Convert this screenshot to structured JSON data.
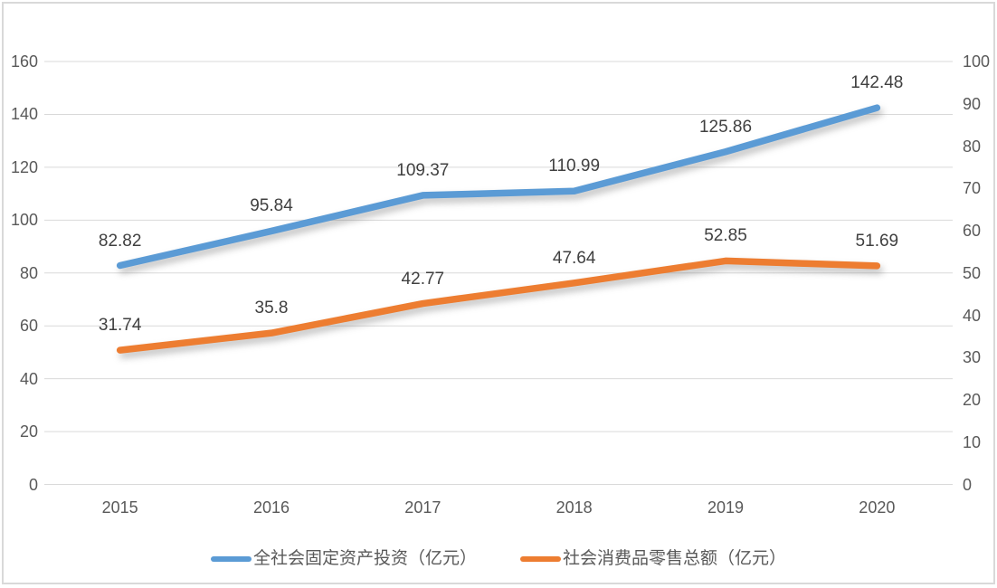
{
  "chart_data": {
    "type": "line",
    "title": "",
    "categories": [
      "2015",
      "2016",
      "2017",
      "2018",
      "2019",
      "2020"
    ],
    "series": [
      {
        "name": "全社会固定资产投资（亿元）",
        "axis": "left",
        "color": "#5B9BD5",
        "values": [
          82.82,
          95.84,
          109.37,
          110.99,
          125.86,
          142.48
        ],
        "labels": [
          "82.82",
          "95.84",
          "109.37",
          "110.99",
          "125.86",
          "142.48"
        ]
      },
      {
        "name": "社会消费品零售总额（亿元）",
        "axis": "right",
        "color": "#ED7D31",
        "values": [
          31.74,
          35.8,
          42.77,
          47.64,
          52.85,
          51.69
        ],
        "labels": [
          "31.74",
          "35.8",
          "42.77",
          "47.64",
          "52.85",
          "51.69"
        ]
      }
    ],
    "left_axis": {
      "min": 0,
      "max": 160,
      "step": 20,
      "ticks": [
        "0",
        "20",
        "40",
        "60",
        "80",
        "100",
        "120",
        "140",
        "160"
      ]
    },
    "right_axis": {
      "min": 0,
      "max": 100,
      "step": 10,
      "ticks": [
        "0",
        "10",
        "20",
        "30",
        "40",
        "50",
        "60",
        "70",
        "80",
        "90",
        "100"
      ]
    },
    "grid": true,
    "legend_position": "bottom"
  },
  "legend": {
    "items": [
      {
        "label": "全社会固定资产投资（亿元）",
        "color": "#5B9BD5"
      },
      {
        "label": "社会消费品零售总额（亿元）",
        "color": "#ED7D31"
      }
    ]
  },
  "colors": {
    "series_blue": "#5B9BD5",
    "series_orange": "#ED7D31",
    "gridline": "#D9D9D9",
    "axis_text": "#595959",
    "data_label_text": "#404040",
    "border": "#D9D9D9",
    "background": "#FFFFFF"
  }
}
